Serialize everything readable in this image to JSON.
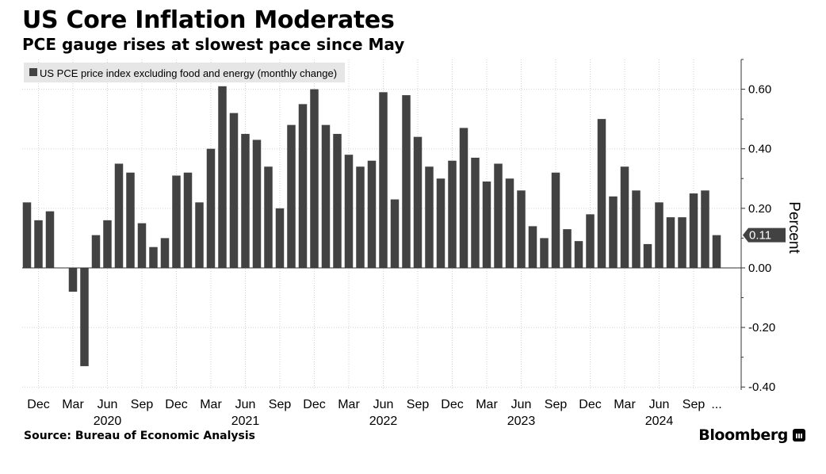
{
  "header": {
    "title": "US Core Inflation Moderates",
    "subtitle": "PCE gauge rises at slowest pace since May"
  },
  "footer": {
    "source": "Source:  Bureau of Economic Analysis",
    "logo": "Bloomberg"
  },
  "colors": {
    "bar": "#424242",
    "grid": "#d2d2d2",
    "legend_bg": "#e6e6e6",
    "callout": "#424242"
  },
  "chart_data": {
    "type": "bar",
    "legend": "US PCE price index excluding food and energy (monthly change)",
    "legend_position": "top-left",
    "ylabel": "Percent",
    "ylim": [
      -0.41,
      0.7
    ],
    "yticks": [
      0.6,
      0.4,
      0.2,
      0.0,
      -0.2,
      -0.4
    ],
    "ytick_labels": [
      "0.60",
      "0.40",
      "0.20",
      "0.00",
      "-0.20",
      "-0.40"
    ],
    "y_axis_position": "right",
    "grid": true,
    "last_value_label": "0.11",
    "categories": [
      "2019-11",
      "2019-12",
      "2020-01",
      "2020-02",
      "2020-03",
      "2020-04",
      "2020-05",
      "2020-06",
      "2020-07",
      "2020-08",
      "2020-09",
      "2020-10",
      "2020-11",
      "2020-12",
      "2021-01",
      "2021-02",
      "2021-03",
      "2021-04",
      "2021-05",
      "2021-06",
      "2021-07",
      "2021-08",
      "2021-09",
      "2021-10",
      "2021-11",
      "2021-12",
      "2022-01",
      "2022-02",
      "2022-03",
      "2022-04",
      "2022-05",
      "2022-06",
      "2022-07",
      "2022-08",
      "2022-09",
      "2022-10",
      "2022-11",
      "2022-12",
      "2023-01",
      "2023-02",
      "2023-03",
      "2023-04",
      "2023-05",
      "2023-06",
      "2023-07",
      "2023-08",
      "2023-09",
      "2023-10",
      "2023-11",
      "2023-12",
      "2024-01",
      "2024-02",
      "2024-03",
      "2024-04",
      "2024-05",
      "2024-06",
      "2024-07",
      "2024-08",
      "2024-09",
      "2024-10",
      "2024-11"
    ],
    "values": [
      0.22,
      0.16,
      0.19,
      0.0,
      -0.08,
      -0.33,
      0.11,
      0.16,
      0.35,
      0.32,
      0.15,
      0.07,
      0.1,
      0.31,
      0.32,
      0.22,
      0.4,
      0.61,
      0.52,
      0.45,
      0.43,
      0.34,
      0.2,
      0.48,
      0.55,
      0.6,
      0.48,
      0.45,
      0.38,
      0.34,
      0.36,
      0.59,
      0.23,
      0.58,
      0.44,
      0.34,
      0.3,
      0.36,
      0.47,
      0.37,
      0.29,
      0.35,
      0.3,
      0.26,
      0.14,
      0.1,
      0.32,
      0.13,
      0.09,
      0.18,
      0.5,
      0.24,
      0.34,
      0.26,
      0.08,
      0.22,
      0.17,
      0.17,
      0.25,
      0.26,
      0.11
    ],
    "x_month_labels": [
      {
        "index": 1,
        "label": "Dec"
      },
      {
        "index": 4,
        "label": "Mar"
      },
      {
        "index": 7,
        "label": "Jun"
      },
      {
        "index": 10,
        "label": "Sep"
      },
      {
        "index": 13,
        "label": "Dec"
      },
      {
        "index": 16,
        "label": "Mar"
      },
      {
        "index": 19,
        "label": "Jun"
      },
      {
        "index": 22,
        "label": "Sep"
      },
      {
        "index": 25,
        "label": "Dec"
      },
      {
        "index": 28,
        "label": "Mar"
      },
      {
        "index": 31,
        "label": "Jun"
      },
      {
        "index": 34,
        "label": "Sep"
      },
      {
        "index": 37,
        "label": "Dec"
      },
      {
        "index": 40,
        "label": "Mar"
      },
      {
        "index": 43,
        "label": "Jun"
      },
      {
        "index": 46,
        "label": "Sep"
      },
      {
        "index": 49,
        "label": "Dec"
      },
      {
        "index": 52,
        "label": "Mar"
      },
      {
        "index": 55,
        "label": "Jun"
      },
      {
        "index": 58,
        "label": "Sep"
      },
      {
        "index": 60,
        "label": "..."
      }
    ],
    "x_year_labels": [
      {
        "index": 7,
        "label": "2020"
      },
      {
        "index": 19,
        "label": "2021"
      },
      {
        "index": 31,
        "label": "2022"
      },
      {
        "index": 43,
        "label": "2023"
      },
      {
        "index": 55,
        "label": "2024"
      }
    ]
  }
}
